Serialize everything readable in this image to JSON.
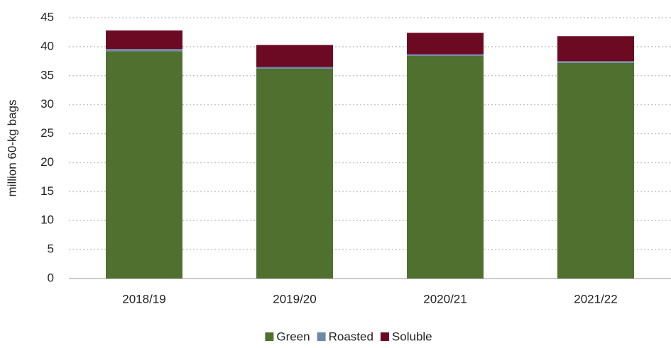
{
  "chart_data": {
    "type": "stacked_bar",
    "y_label": "million 60-kg bags",
    "categories": [
      "2018/19",
      "2019/20",
      "2020/21",
      "2021/22"
    ],
    "series": [
      {
        "name": "Green",
        "color": "#50702f",
        "values": [
          39.2,
          36.2,
          38.4,
          37.2
        ]
      },
      {
        "name": "Roasted",
        "color": "#7088a8",
        "values": [
          0.4,
          0.3,
          0.3,
          0.3
        ]
      },
      {
        "name": "Soluble",
        "color": "#6b0a22",
        "values": [
          3.2,
          3.8,
          3.7,
          4.3
        ]
      }
    ],
    "ylim": [
      0,
      45
    ],
    "yticks": [
      0,
      5,
      10,
      15,
      20,
      25,
      30,
      35,
      40,
      45
    ],
    "grid": true,
    "legend": "bottom"
  }
}
